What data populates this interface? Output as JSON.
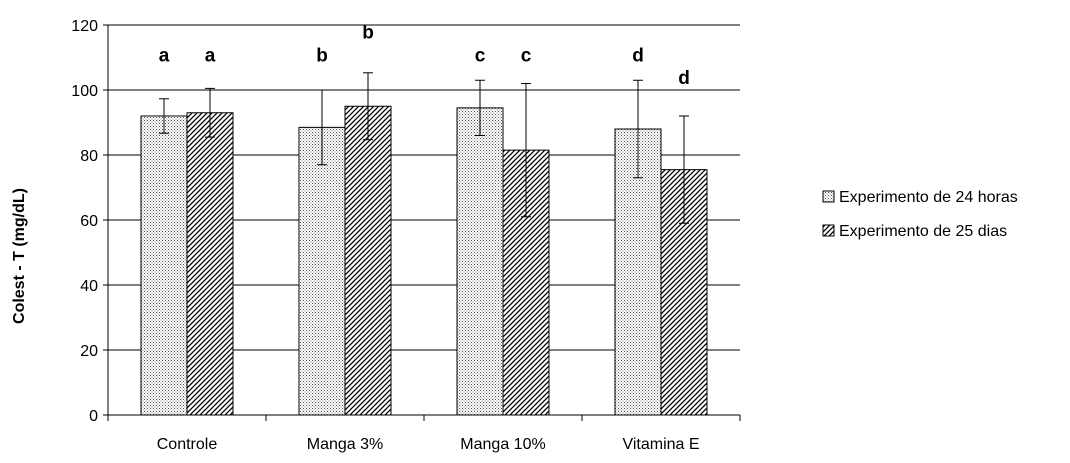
{
  "chart_data": {
    "type": "bar",
    "title": "",
    "xlabel": "",
    "ylabel": "Colest - T (mg/dL)",
    "ylim": [
      0,
      120
    ],
    "yticks": [
      0,
      20,
      40,
      60,
      80,
      100,
      120
    ],
    "grid": true,
    "legend_position": "right",
    "categories": [
      "Controle",
      "Manga 3%",
      "Manga 10%",
      "Vitamina E"
    ],
    "series": [
      {
        "name": "Experimento de 24 horas",
        "pattern": "dotted",
        "values": [
          92,
          88.5,
          94.5,
          88
        ],
        "error": [
          5.3,
          11.5,
          8.5,
          15
        ],
        "significance": [
          "a",
          "b",
          "c",
          "d"
        ]
      },
      {
        "name": "Experimento de 25 dias",
        "pattern": "hatched",
        "values": [
          93,
          95,
          81.5,
          75.5
        ],
        "error": [
          7.5,
          10.3,
          20.5,
          16.5
        ],
        "significance": [
          "a",
          "b",
          "c",
          "d"
        ]
      }
    ],
    "significance_y": [
      [
        111,
        111
      ],
      [
        111,
        118
      ],
      [
        111,
        111
      ],
      [
        111,
        104
      ]
    ]
  },
  "colors": {
    "axis": "#000000",
    "grid": "#000000",
    "bar_fill": "#ffffff",
    "pattern_dots": "#555555",
    "pattern_hatch": "#000000"
  }
}
